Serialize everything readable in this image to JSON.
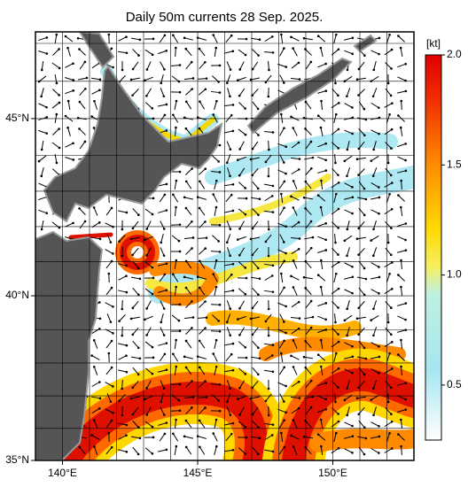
{
  "title": "Daily 50m currents 28 Sep. 2025.",
  "map": {
    "projection": "mercator",
    "lon_range": [
      139,
      153
    ],
    "lat_range": [
      35,
      47.3
    ],
    "lon_ticks": [
      {
        "value": 140,
        "label": "140°E"
      },
      {
        "value": 145,
        "label": "145°E"
      },
      {
        "value": 150,
        "label": "150°E"
      }
    ],
    "lat_ticks": [
      {
        "value": 35,
        "label": "35°N"
      },
      {
        "value": 40,
        "label": "40°N"
      },
      {
        "value": 45,
        "label": "45°N"
      }
    ]
  },
  "colorbar": {
    "unit": "[kt]",
    "range": [
      0.25,
      2
    ],
    "ticks": [
      0.5,
      {
        "value": 1,
        "label": "1.0"
      },
      1.5,
      {
        "value": 2,
        "label": "2.0"
      }
    ]
  }
}
